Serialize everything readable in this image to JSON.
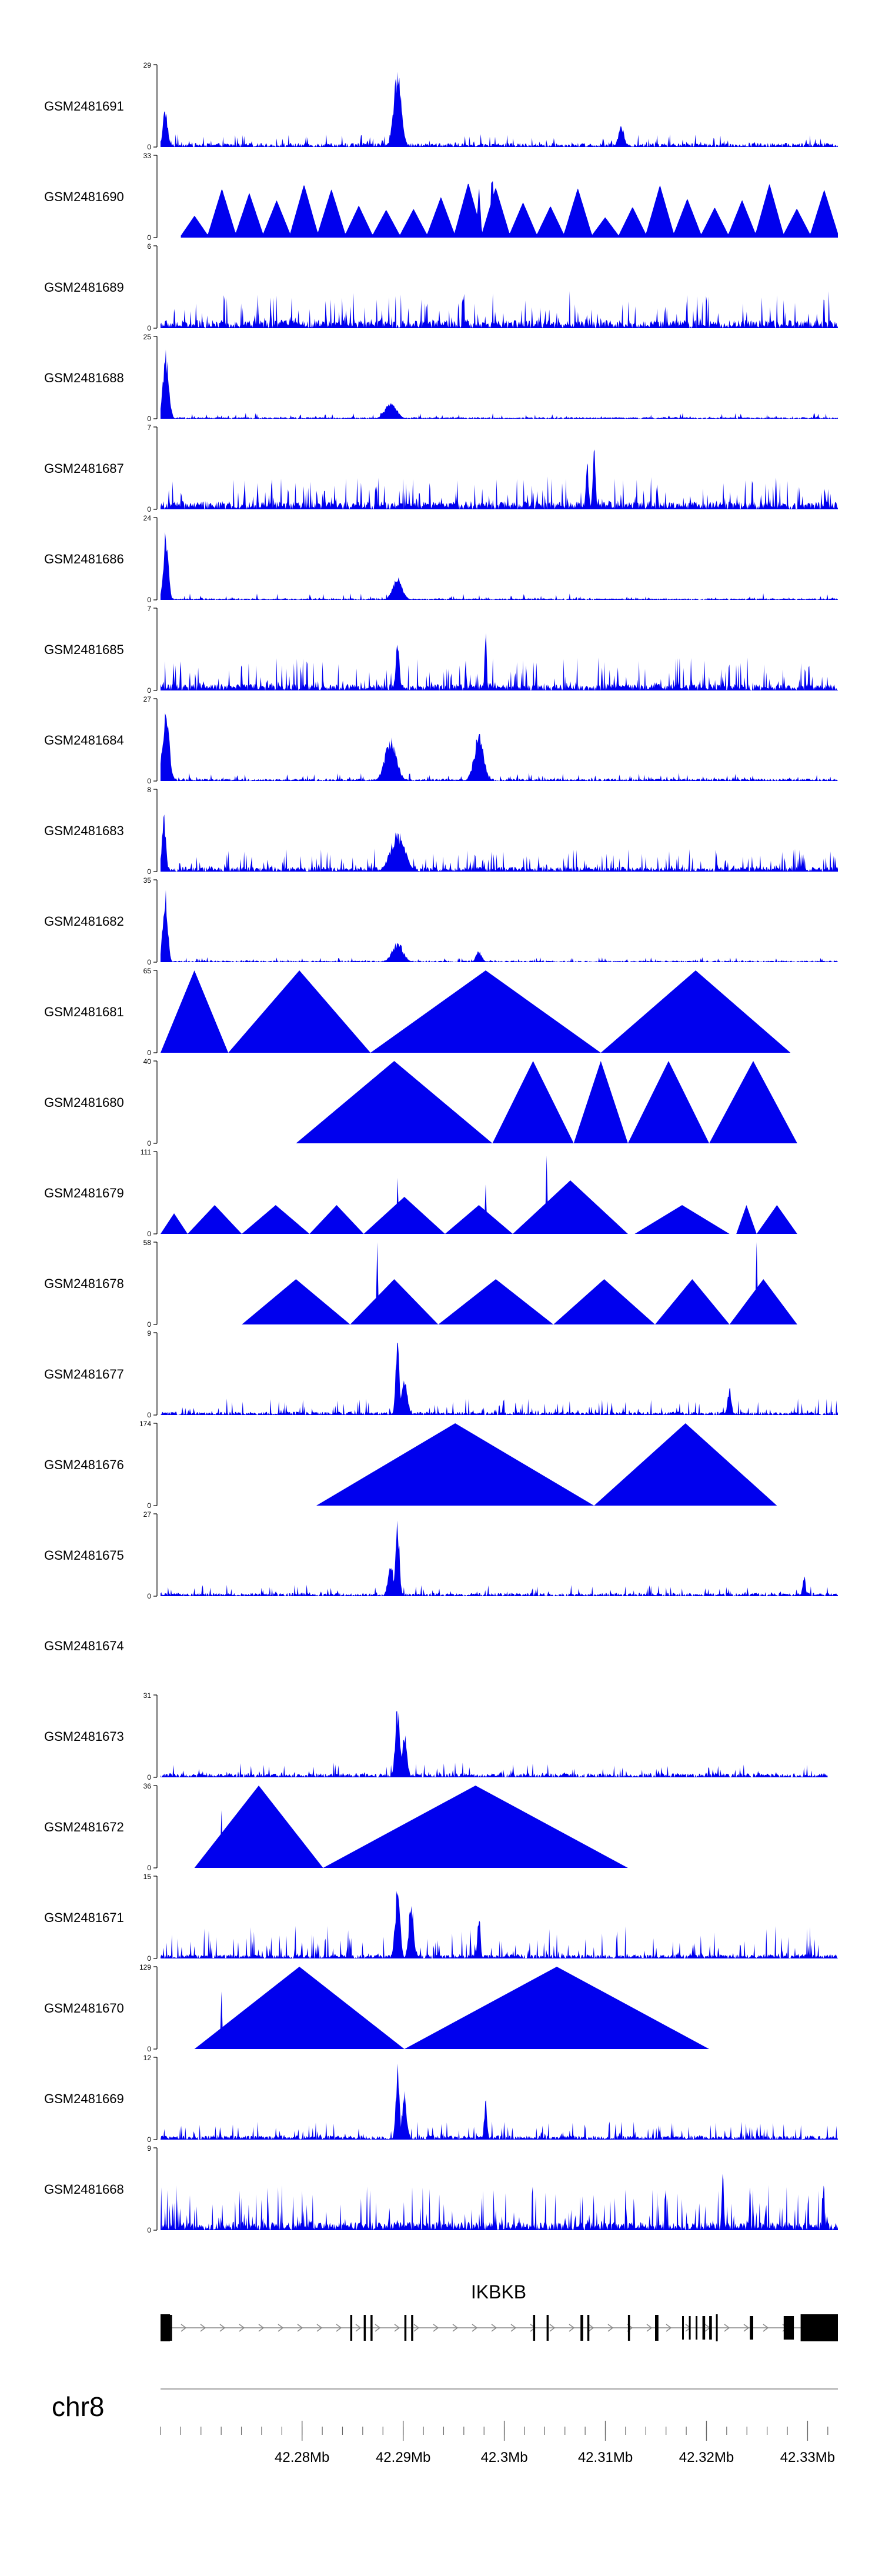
{
  "chart_data": {
    "type": "area",
    "title": "",
    "colors": {
      "track_fill": "#0000ee",
      "axis": "#000000",
      "gene": "#000000",
      "intron": "#888888"
    },
    "tracks": [
      {
        "name": "GSM2481691",
        "ymax": 29,
        "shape": "spiky",
        "density": 0.5,
        "peaks": [
          [
            0.35,
            1.0,
            0.008
          ],
          [
            0.007,
            0.5,
            0.005
          ],
          [
            0.68,
            0.28,
            0.006
          ]
        ],
        "spike_height": 0.16,
        "base_height": 0.05
      },
      {
        "name": "GSM2481690",
        "ymax": 33,
        "shape": "sparse",
        "count": 24,
        "x_start": 0.03,
        "x_end": 1.0,
        "peaks": [
          [
            0.49,
            0.95,
            0.003
          ],
          [
            0.47,
            0.7,
            0.003
          ]
        ],
        "spike_height": 0.45
      },
      {
        "name": "GSM2481689",
        "ymax": 6,
        "shape": "spiky",
        "density": 0.7,
        "peaks": [],
        "spike_height": 0.45,
        "base_height": 0.1
      },
      {
        "name": "GSM2481688",
        "ymax": 25,
        "shape": "spiky",
        "density": 0.4,
        "peaks": [
          [
            0.008,
            0.85,
            0.006
          ],
          [
            0.34,
            0.22,
            0.012
          ]
        ],
        "spike_height": 0.07,
        "base_height": 0.02
      },
      {
        "name": "GSM2481687",
        "ymax": 7,
        "shape": "spiky",
        "density": 0.7,
        "peaks": [
          [
            0.64,
            0.8,
            0.003
          ],
          [
            0.63,
            0.6,
            0.003
          ]
        ],
        "spike_height": 0.4,
        "base_height": 0.1
      },
      {
        "name": "GSM2481686",
        "ymax": 24,
        "shape": "spiky",
        "density": 0.4,
        "peaks": [
          [
            0.008,
            0.9,
            0.005
          ],
          [
            0.35,
            0.3,
            0.01
          ]
        ],
        "spike_height": 0.08,
        "base_height": 0.02
      },
      {
        "name": "GSM2481685",
        "ymax": 7,
        "shape": "spiky",
        "density": 0.7,
        "peaks": [
          [
            0.48,
            0.95,
            0.002
          ],
          [
            0.35,
            0.6,
            0.004
          ]
        ],
        "spike_height": 0.4,
        "base_height": 0.08
      },
      {
        "name": "GSM2481684",
        "ymax": 27,
        "shape": "spiky",
        "density": 0.5,
        "peaks": [
          [
            0.008,
            0.9,
            0.007
          ],
          [
            0.34,
            0.55,
            0.012
          ],
          [
            0.47,
            0.6,
            0.01
          ]
        ],
        "spike_height": 0.1,
        "base_height": 0.03
      },
      {
        "name": "GSM2481683",
        "ymax": 8,
        "shape": "spiky",
        "density": 0.7,
        "peaks": [
          [
            0.005,
            0.75,
            0.004
          ],
          [
            0.35,
            0.5,
            0.015
          ]
        ],
        "spike_height": 0.28,
        "base_height": 0.06
      },
      {
        "name": "GSM2481682",
        "ymax": 35,
        "shape": "spiky",
        "density": 0.4,
        "peaks": [
          [
            0.007,
            0.95,
            0.005
          ],
          [
            0.35,
            0.25,
            0.012
          ],
          [
            0.47,
            0.15,
            0.006
          ]
        ],
        "spike_height": 0.06,
        "base_height": 0.02
      },
      {
        "name": "GSM2481681",
        "ymax": 65,
        "shape": "triangles",
        "tri": [
          [
            0.0,
            0.1,
            1.0
          ],
          [
            0.1,
            0.31,
            1.0
          ],
          [
            0.31,
            0.65,
            1.0
          ],
          [
            0.65,
            0.93,
            1.0
          ]
        ]
      },
      {
        "name": "GSM2481680",
        "ymax": 40,
        "shape": "triangles",
        "tri": [
          [
            0.2,
            0.49,
            1.0
          ],
          [
            0.49,
            0.61,
            1.0
          ],
          [
            0.61,
            0.69,
            1.0
          ],
          [
            0.69,
            0.81,
            1.0
          ],
          [
            0.81,
            0.94,
            1.0
          ]
        ]
      },
      {
        "name": "GSM2481679",
        "ymax": 111,
        "shape": "triangles",
        "tri": [
          [
            0.0,
            0.04,
            0.25
          ],
          [
            0.04,
            0.12,
            0.35
          ],
          [
            0.12,
            0.22,
            0.35
          ],
          [
            0.22,
            0.3,
            0.35
          ],
          [
            0.3,
            0.42,
            0.45
          ],
          [
            0.42,
            0.52,
            0.35
          ],
          [
            0.52,
            0.69,
            0.65
          ],
          [
            0.7,
            0.84,
            0.35
          ],
          [
            0.85,
            0.88,
            0.35
          ],
          [
            0.88,
            0.94,
            0.35
          ]
        ],
        "spikes": [
          [
            0.35,
            0.68
          ],
          [
            0.48,
            0.6
          ],
          [
            0.57,
            0.95
          ]
        ]
      },
      {
        "name": "GSM2481678",
        "ymax": 58,
        "shape": "triangles",
        "tri": [
          [
            0.12,
            0.28,
            0.55
          ],
          [
            0.28,
            0.41,
            0.55
          ],
          [
            0.41,
            0.58,
            0.55
          ],
          [
            0.58,
            0.73,
            0.55
          ],
          [
            0.73,
            0.84,
            0.55
          ],
          [
            0.84,
            0.94,
            0.55
          ]
        ],
        "spikes": [
          [
            0.32,
            1.0
          ],
          [
            0.88,
            1.0
          ]
        ]
      },
      {
        "name": "GSM2481677",
        "ymax": 9,
        "shape": "spiky",
        "density": 0.6,
        "peaks": [
          [
            0.35,
            0.95,
            0.004
          ],
          [
            0.36,
            0.5,
            0.006
          ],
          [
            0.84,
            0.35,
            0.004
          ]
        ],
        "spike_height": 0.2,
        "base_height": 0.04
      },
      {
        "name": "GSM2481676",
        "ymax": 174,
        "shape": "triangles",
        "tri": [
          [
            0.23,
            0.64,
            1.0
          ],
          [
            0.64,
            0.91,
            1.0
          ]
        ]
      },
      {
        "name": "GSM2481675",
        "ymax": 27,
        "shape": "spiky",
        "density": 0.5,
        "peaks": [
          [
            0.35,
            0.95,
            0.004
          ],
          [
            0.34,
            0.4,
            0.006
          ],
          [
            0.95,
            0.3,
            0.003
          ]
        ],
        "spike_height": 0.14,
        "base_height": 0.04
      },
      {
        "name": "GSM2481674",
        "ymax": null,
        "shape": "empty"
      },
      {
        "name": "GSM2481673",
        "ymax": 31,
        "shape": "spiky",
        "density": 0.5,
        "x_end": 0.985,
        "peaks": [
          [
            0.35,
            0.95,
            0.005
          ],
          [
            0.36,
            0.6,
            0.005
          ]
        ],
        "spike_height": 0.18,
        "base_height": 0.05
      },
      {
        "name": "GSM2481672",
        "ymax": 36,
        "shape": "triangles",
        "tri": [
          [
            0.05,
            0.24,
            1.0
          ],
          [
            0.24,
            0.69,
            1.0
          ]
        ],
        "spikes": [
          [
            0.09,
            0.7
          ]
        ]
      },
      {
        "name": "GSM2481671",
        "ymax": 15,
        "shape": "spiky",
        "density": 0.6,
        "peaks": [
          [
            0.35,
            0.95,
            0.005
          ],
          [
            0.37,
            0.75,
            0.005
          ],
          [
            0.47,
            0.6,
            0.003
          ]
        ],
        "spike_height": 0.4,
        "base_height": 0.05
      },
      {
        "name": "GSM2481670",
        "ymax": 129,
        "shape": "triangles",
        "tri": [
          [
            0.05,
            0.36,
            1.0
          ],
          [
            0.36,
            0.81,
            1.0
          ]
        ],
        "spikes": [
          [
            0.09,
            0.7
          ]
        ]
      },
      {
        "name": "GSM2481669",
        "ymax": 12,
        "shape": "spiky",
        "density": 0.6,
        "peaks": [
          [
            0.35,
            0.95,
            0.004
          ],
          [
            0.36,
            0.6,
            0.005
          ],
          [
            0.48,
            0.55,
            0.003
          ]
        ],
        "spike_height": 0.22,
        "base_height": 0.05
      },
      {
        "name": "GSM2481668",
        "ymax": 9,
        "shape": "spiky",
        "density": 0.75,
        "peaks": [
          [
            0.83,
            0.95,
            0.002
          ]
        ],
        "spike_height": 0.55,
        "base_height": 0.1
      }
    ],
    "gene": {
      "name": "IKBKB",
      "exons_start_fraction": [
        0.0,
        0.014,
        0.28,
        0.3,
        0.31,
        0.36,
        0.37,
        0.55,
        0.57,
        0.62,
        0.63,
        0.69,
        0.73,
        0.77,
        0.78,
        0.79,
        0.8,
        0.81,
        0.82,
        0.87,
        0.92,
        0.945
      ],
      "exons_end_fraction": [
        0.014,
        0.017,
        0.283,
        0.303,
        0.313,
        0.363,
        0.373,
        0.553,
        0.573,
        0.624,
        0.633,
        0.693,
        0.735,
        0.772,
        0.782,
        0.792,
        0.804,
        0.814,
        0.82,
        0.875,
        0.935,
        1.0
      ],
      "thick_exons": [
        0,
        13,
        14,
        15,
        16,
        17,
        18,
        19,
        20,
        21
      ],
      "big_exons": [
        0,
        18,
        21
      ]
    },
    "axis": {
      "chromosome": "chr8",
      "start": 42.266,
      "end": 42.333,
      "minor_step": 0.002,
      "ticks": [
        42.28,
        42.29,
        42.3,
        42.31,
        42.32,
        42.33
      ],
      "tick_labels": [
        "42.28Mb",
        "42.29Mb",
        "42.3Mb",
        "42.31Mb",
        "42.32Mb",
        "42.33Mb"
      ]
    }
  }
}
